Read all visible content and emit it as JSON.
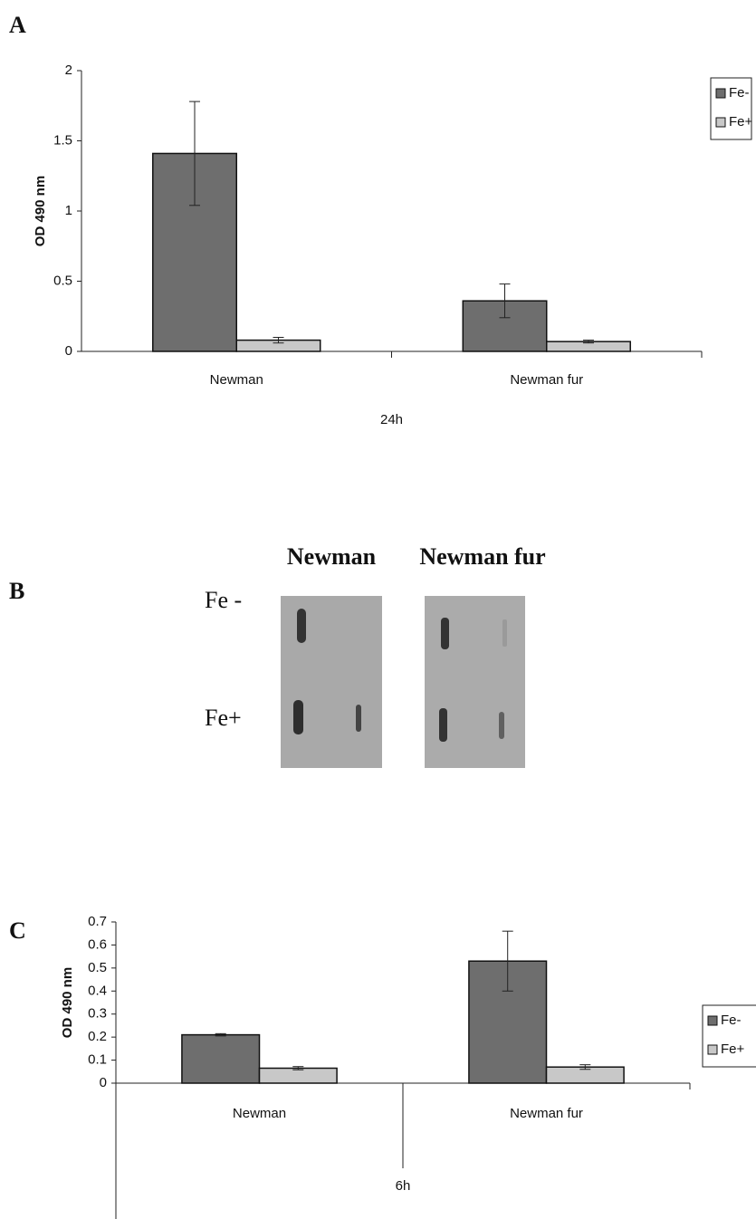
{
  "panel_labels": [
    "A",
    "B",
    "C"
  ],
  "blot": {
    "column_labels": [
      "Newman",
      "Newman fur"
    ],
    "row_labels": [
      "Fe -",
      "Fe+"
    ]
  },
  "chart_data": [
    {
      "type": "bar",
      "y_label": "OD 490 nm",
      "x_label": "24h",
      "categories": [
        "Newman",
        "Newman fur"
      ],
      "series": [
        {
          "name": "Fe-",
          "color": "#6e6e6e",
          "values": [
            1.41,
            0.36
          ],
          "errors": [
            0.37,
            0.12
          ]
        },
        {
          "name": "Fe+",
          "color": "#c8c8c8",
          "values": [
            0.08,
            0.07
          ],
          "errors": [
            0.02,
            0.01
          ]
        }
      ],
      "ylim": [
        0,
        2
      ],
      "yticks": [
        0,
        0.5,
        1,
        1.5,
        2
      ],
      "grid": false,
      "legend": "top-right"
    },
    {
      "type": "bar",
      "y_label": "OD 490 nm",
      "x_label": "6h",
      "categories": [
        "Newman",
        "Newman fur"
      ],
      "series": [
        {
          "name": "Fe-",
          "color": "#6e6e6e",
          "values": [
            0.21,
            0.53
          ],
          "errors": [
            0.005,
            0.13
          ]
        },
        {
          "name": "Fe+",
          "color": "#c8c8c8",
          "values": [
            0.065,
            0.07
          ],
          "errors": [
            0.007,
            0.01
          ]
        }
      ],
      "ylim": [
        0,
        0.7
      ],
      "yticks": [
        0,
        0.1,
        0.2,
        0.3,
        0.4,
        0.5,
        0.6,
        0.7
      ],
      "grid": false,
      "legend": "right"
    }
  ]
}
